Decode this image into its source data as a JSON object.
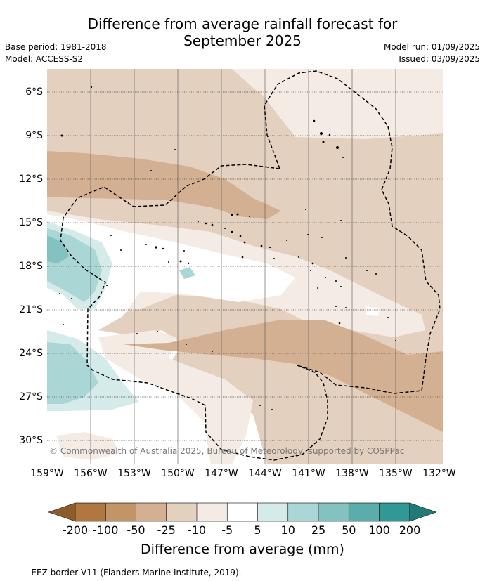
{
  "title_line1": "Difference from average rainfall forecast for",
  "title_line2": "September 2025",
  "meta_left": {
    "base_period": "Base period: 1981-2018",
    "model": "Model: ACCESS-S2"
  },
  "meta_right": {
    "model_run": "Model run: 01/09/2025",
    "issued": "Issued: 03/09/2025"
  },
  "copyright": "© Commonwealth of Australia 2025, Bureau of Meteorology, supported by COSPPac",
  "lat_labels": [
    "6°S",
    "9°S",
    "12°S",
    "15°S",
    "18°S",
    "21°S",
    "24°S",
    "27°S",
    "30°S"
  ],
  "lon_labels": [
    "159°W",
    "156°W",
    "153°W",
    "150°W",
    "147°W",
    "144°W",
    "141°W",
    "138°W",
    "135°W",
    "132°W"
  ],
  "colorbar": {
    "ticks": [
      "-200",
      "-100",
      "-50",
      "-25",
      "-10",
      "-5",
      "5",
      "10",
      "25",
      "50",
      "100",
      "200"
    ],
    "colors": [
      "#8e5c2b",
      "#b07840",
      "#c29568",
      "#d3b091",
      "#e4d0bf",
      "#f4ebe4",
      "#ffffff",
      "#d5ebea",
      "#aad7d5",
      "#83c2c0",
      "#5aadab",
      "#319895",
      "#227a77"
    ],
    "title": "Difference from average (mm)"
  },
  "footnote": "--  --  -- EEZ border V11 (Flanders Marine Institute, 2019)."
}
